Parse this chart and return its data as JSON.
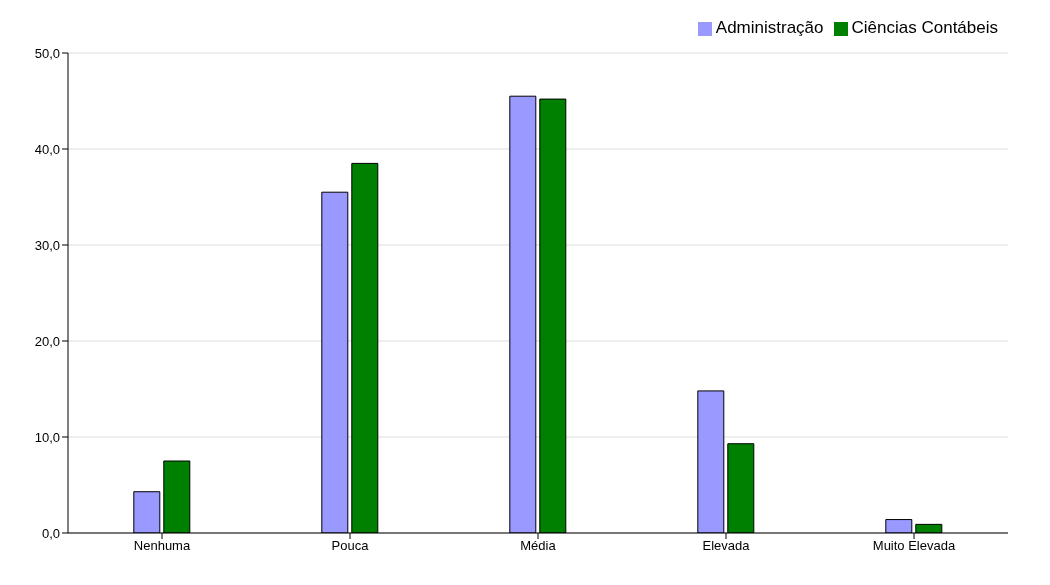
{
  "chart_data": {
    "type": "bar",
    "categories": [
      "Nenhuma",
      "Pouca",
      "Média",
      "Elevada",
      "Muito Elevada"
    ],
    "series": [
      {
        "name": "Administração",
        "color": "#9999ff",
        "values": [
          4.3,
          35.5,
          45.5,
          14.8,
          1.4
        ]
      },
      {
        "name": "Ciências Contábeis",
        "color": "#008000",
        "values": [
          7.5,
          38.5,
          45.2,
          9.3,
          0.9
        ]
      }
    ],
    "ylim": [
      0,
      50
    ],
    "yticks": [
      {
        "value": 0,
        "label": "0,0"
      },
      {
        "value": 10,
        "label": "10,0"
      },
      {
        "value": 20,
        "label": "20,0"
      },
      {
        "value": 30,
        "label": "30,0"
      },
      {
        "value": 40,
        "label": "40,0"
      },
      {
        "value": 50,
        "label": "50,0"
      }
    ],
    "grid": "y",
    "legend": "top right"
  }
}
